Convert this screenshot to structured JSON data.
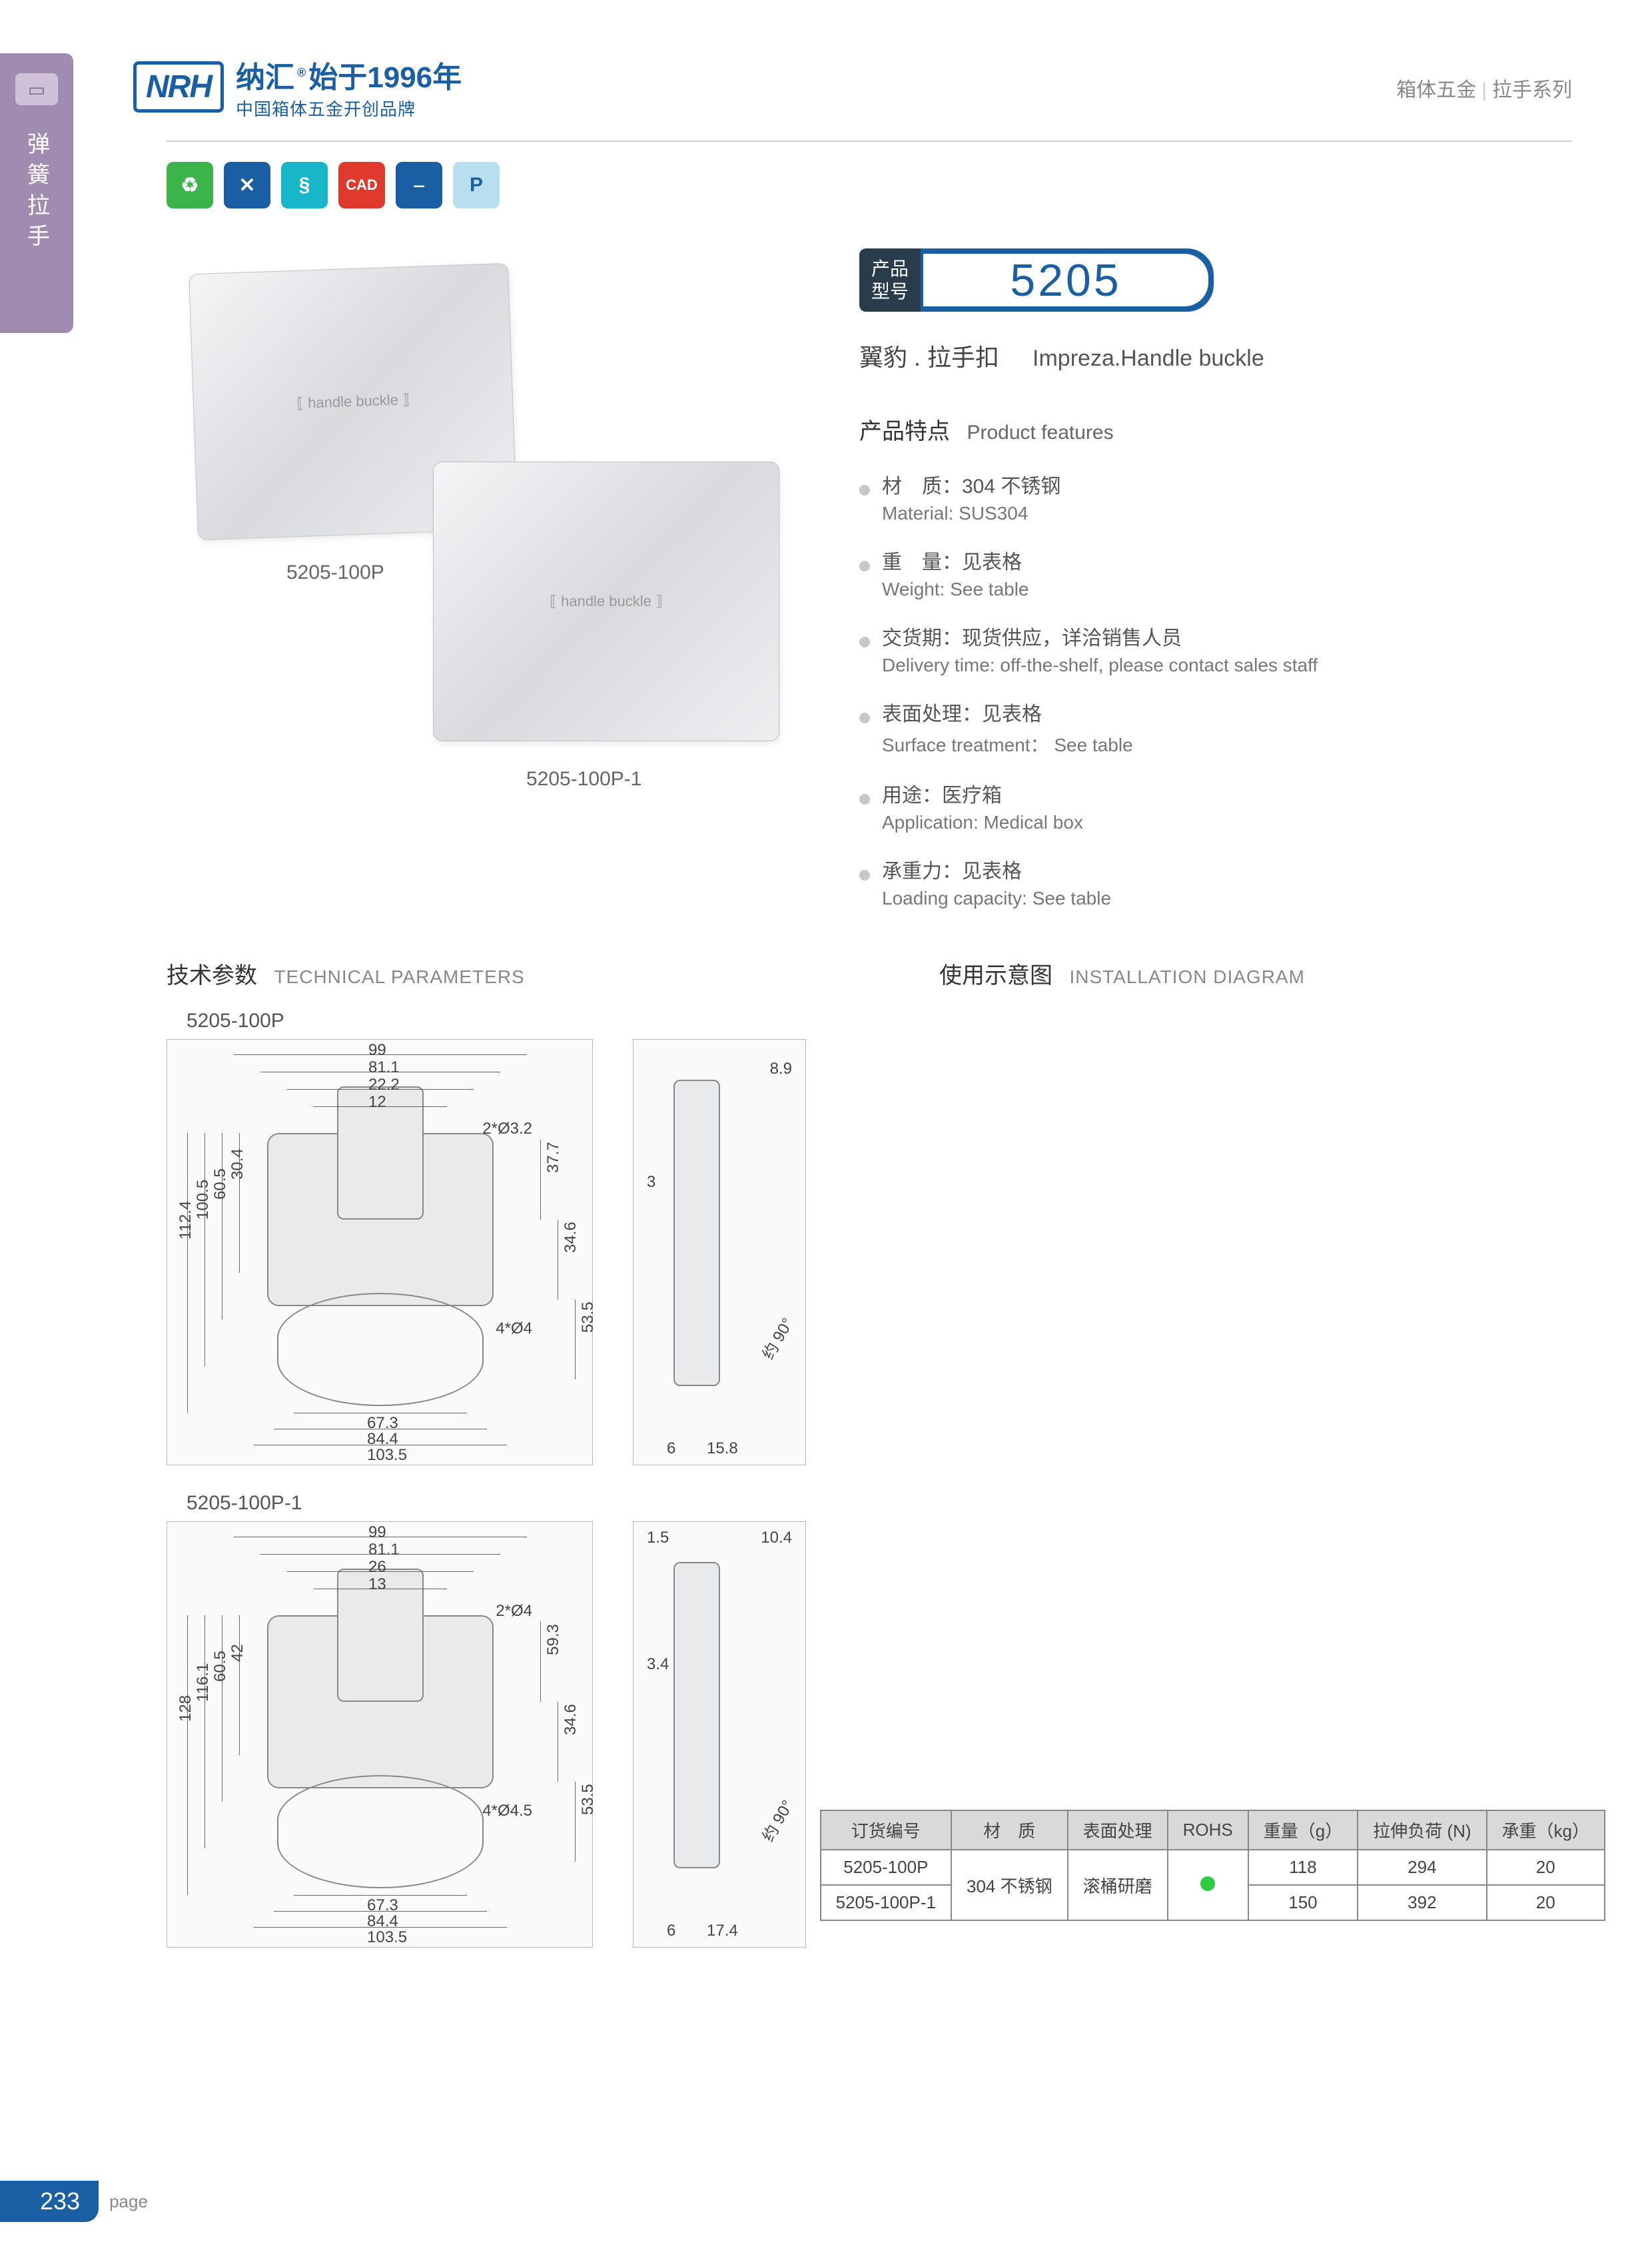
{
  "sideTab": {
    "label": "弹簧拉手"
  },
  "header": {
    "logoMark": "NRH",
    "logoLine1a": "纳汇",
    "logoReg": "®",
    "logoLine1b": "始于1996年",
    "logoLine2": "中国箱体五金开创品牌",
    "rightCat1": "箱体五金",
    "rightCat2": "拉手系列"
  },
  "badges": [
    {
      "glyph": "♻",
      "bg": "#3bb54a"
    },
    {
      "glyph": "✕",
      "bg": "#1a5fa3"
    },
    {
      "glyph": "§",
      "bg": "#17b6c9"
    },
    {
      "glyph": "CAD",
      "bg": "#e03a2f"
    },
    {
      "glyph": "⎯",
      "bg": "#1a5fa3"
    },
    {
      "glyph": "P",
      "bg": "#b8dff0"
    }
  ],
  "product": {
    "img1Label": "5205-100P",
    "img2Label": "5205-100P-1",
    "modelLabelTop": "产品",
    "modelLabelBottom": "型号",
    "modelNumber": "5205",
    "seriesCn": "翼豹 . 拉手扣",
    "seriesEn": "Impreza.Handle buckle",
    "featuresTitleCn": "产品特点",
    "featuresTitleEn": "Product features",
    "features": [
      {
        "cn": "材　质：304 不锈钢",
        "en": "Material: SUS304"
      },
      {
        "cn": "重　量：见表格",
        "en": "Weight: See table"
      },
      {
        "cn": "交货期：现货供应，详洽销售人员",
        "en": "Delivery time: off-the-shelf, please contact sales staff"
      },
      {
        "cn": "表面处理：见表格",
        "en": "Surface treatment： See table"
      },
      {
        "cn": "用途：医疗箱",
        "en": "Application: Medical box"
      },
      {
        "cn": "承重力：见表格",
        "en": "Loading capacity: See table"
      }
    ]
  },
  "sections": {
    "techCn": "技术参数",
    "techEn": "TECHNICAL PARAMETERS",
    "installCn": "使用示意图",
    "installEn": "INSTALLATION DIAGRAM"
  },
  "drawings": [
    {
      "label": "5205-100P",
      "topDims": [
        "99",
        "81.1",
        "22.2",
        "12"
      ],
      "holeNote1": "2*Ø3.2",
      "holeNote2": "4*Ø4",
      "leftDims": [
        "112.4",
        "100.5",
        "60.5",
        "30.4"
      ],
      "rightDims": [
        "37.7",
        "34.6",
        "53.5"
      ],
      "bottomDims": [
        "67.3",
        "84.4",
        "103.5"
      ],
      "sideTop": "8.9",
      "sideMid": "3",
      "sideAngle": "约 90°",
      "sideBottom1": "6",
      "sideBottom2": "15.8"
    },
    {
      "label": "5205-100P-1",
      "topDims": [
        "99",
        "81.1",
        "26",
        "13"
      ],
      "holeNote1": "2*Ø4",
      "holeNote2": "4*Ø4.5",
      "leftDims": [
        "128",
        "116.1",
        "60.5",
        "42"
      ],
      "rightDims": [
        "59.3",
        "34.6",
        "53.5"
      ],
      "bottomDims": [
        "67.3",
        "84.4",
        "103.5"
      ],
      "sideTop1": "1.5",
      "sideTop2": "10.4",
      "sideMid": "3.4",
      "sideAngle": "约 90°",
      "sideBottom1": "6",
      "sideBottom2": "17.4"
    }
  ],
  "table": {
    "headers": [
      "订货编号",
      "材　质",
      "表面处理",
      "ROHS",
      "重量（g）",
      "拉伸负荷 (N)",
      "承重（kg）"
    ],
    "material": "304 不锈钢",
    "surface": "滚桶研磨",
    "rows": [
      {
        "code": "5205-100P",
        "weight": "118",
        "load": "294",
        "cap": "20"
      },
      {
        "code": "5205-100P-1",
        "weight": "150",
        "load": "392",
        "cap": "20"
      }
    ]
  },
  "footer": {
    "pageNum": "233",
    "pageLabel": "page"
  }
}
